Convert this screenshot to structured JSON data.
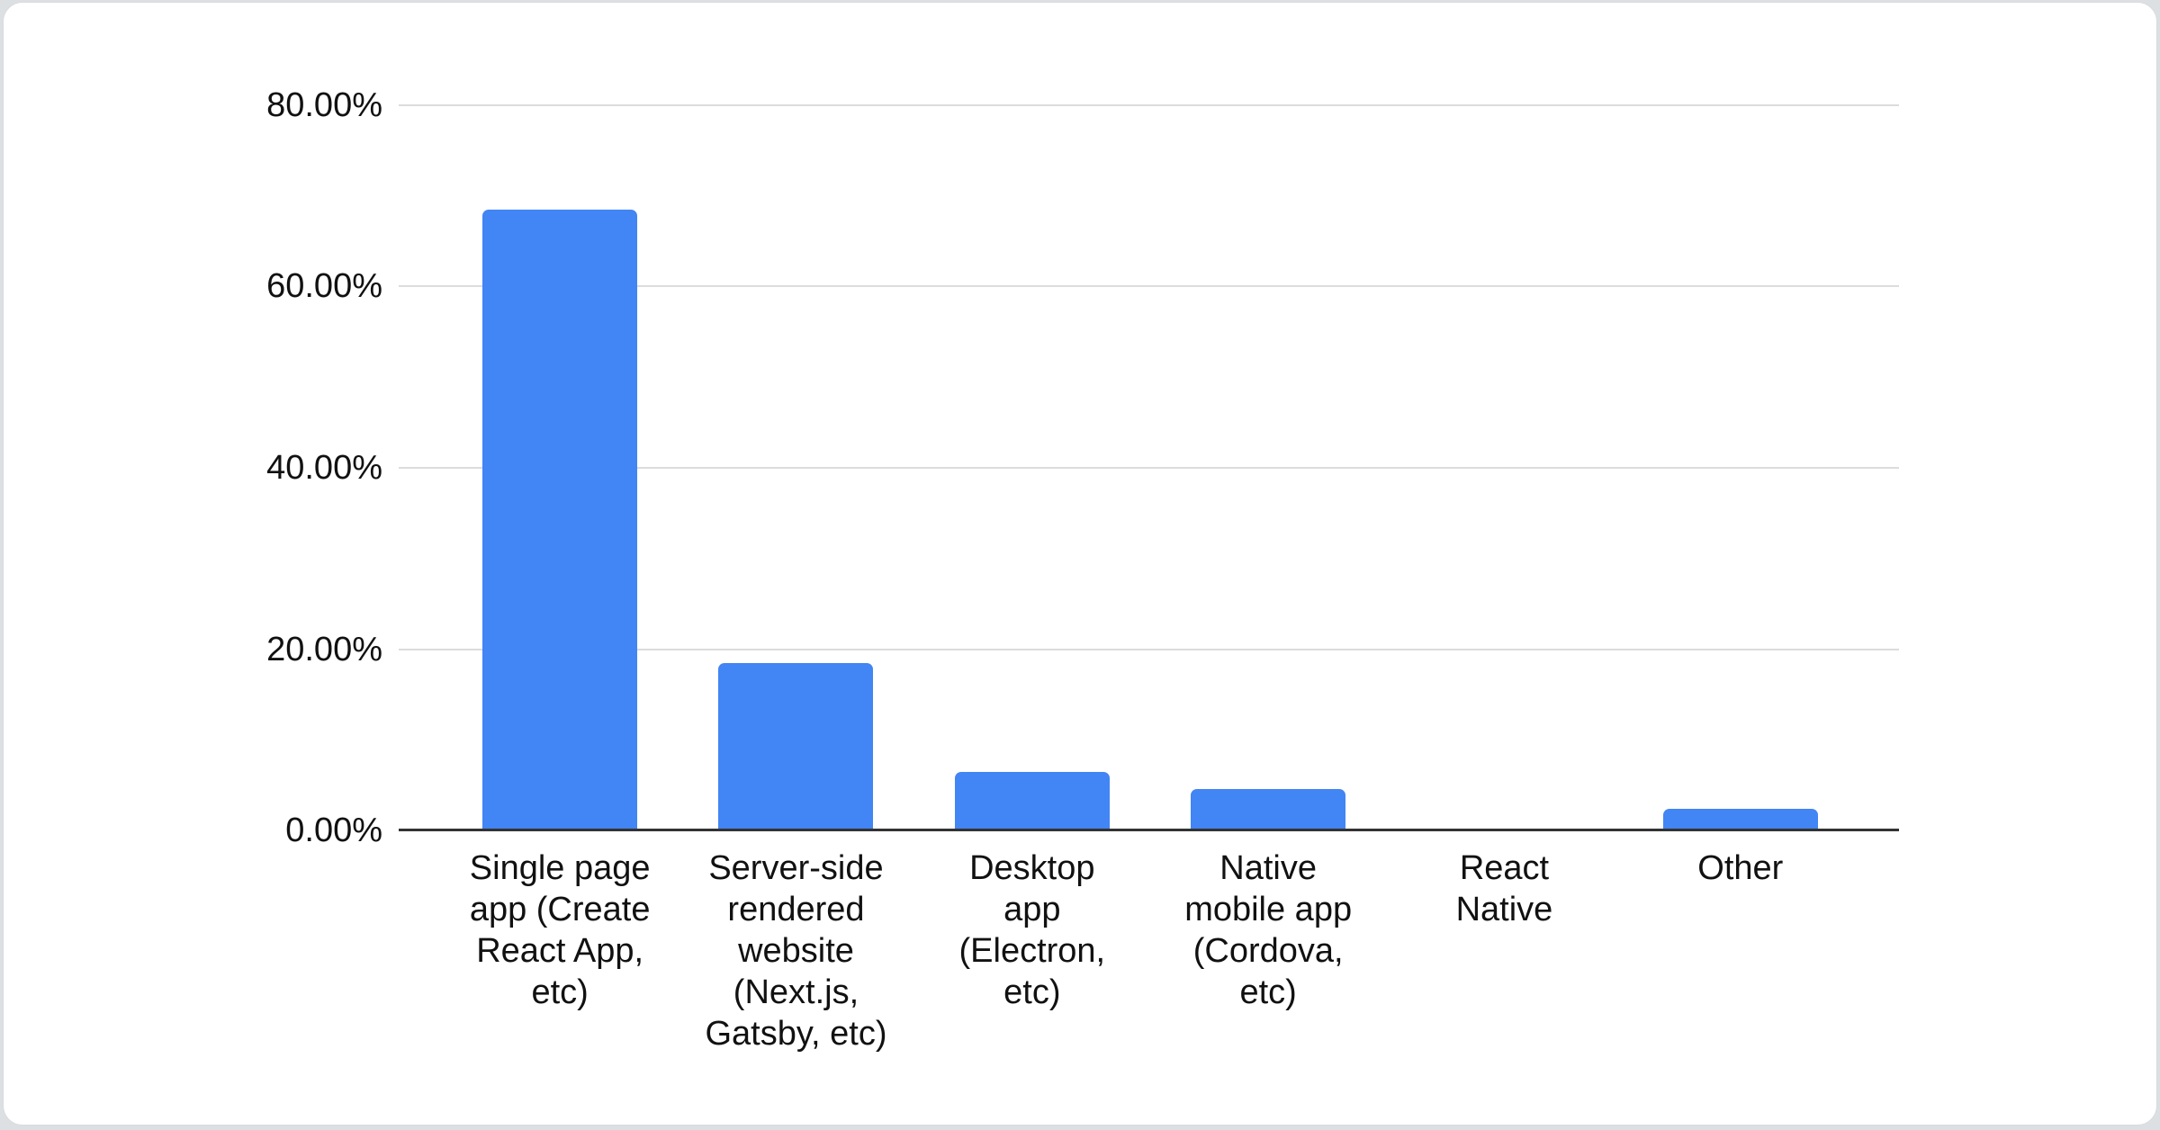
{
  "colors": {
    "bar": "#4285f4",
    "gridline": "#dcdcdc",
    "axis_line": "#333333",
    "text": "#111111",
    "card_background": "#ffffff",
    "page_background": "#dde0e3"
  },
  "chart_data": {
    "type": "bar",
    "title": "",
    "xlabel": "",
    "ylabel": "",
    "unit": "%",
    "categories": [
      "Single page app (Create React App, etc)",
      "Server-side rendered website (Next.js, Gatsby, etc)",
      "Desktop app (Electron, etc)",
      "Native mobile app (Cordova, etc)",
      "React Native",
      "Other"
    ],
    "categories_wrapped": [
      "Single page\napp (Create\nReact App,\netc)",
      "Server-side\nrendered\nwebsite\n(Next.js,\nGatsby, etc)",
      "Desktop\napp\n(Electron,\netc)",
      "Native\nmobile app\n(Cordova,\netc)",
      "React\nNative",
      "Other"
    ],
    "values": [
      68.5,
      18.5,
      6.5,
      4.6,
      0,
      2.4
    ],
    "ylim": [
      0,
      80
    ],
    "ytick_step": 20,
    "yticks": [
      "0.00%",
      "20.00%",
      "40.00%",
      "60.00%",
      "80.00%"
    ],
    "grid": true,
    "legend": "none",
    "bar_color": "#4285f4"
  }
}
